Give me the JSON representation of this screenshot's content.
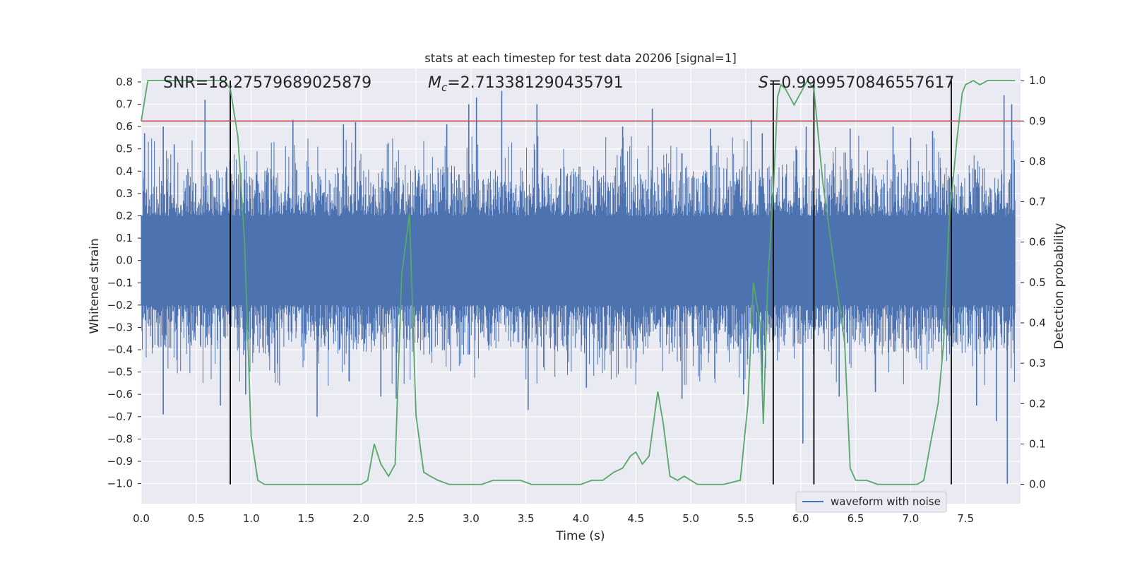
{
  "chart_data": {
    "type": "line",
    "title": "stats at each timestep for test data 20206 [signal=1]",
    "xlabel": "Time (s)",
    "ylabel": "Whitened strain",
    "y2label": "Detection probability",
    "xlim": [
      0.0,
      8.0
    ],
    "ylim": [
      -1.09,
      0.86
    ],
    "y2lim": [
      -0.048,
      1.03
    ],
    "x_ticks": [
      "0.0",
      "0.5",
      "1.0",
      "1.5",
      "2.0",
      "2.5",
      "3.0",
      "3.5",
      "4.0",
      "4.5",
      "5.0",
      "5.5",
      "6.0",
      "6.5",
      "7.0",
      "7.5"
    ],
    "y_ticks": [
      "0.8",
      "0.7",
      "0.6",
      "0.5",
      "0.4",
      "0.3",
      "0.2",
      "0.1",
      "0.0",
      "-0.1",
      "-0.2",
      "-0.3",
      "-0.4",
      "-0.5",
      "-0.6",
      "-0.7",
      "-0.8",
      "-0.9",
      "-1.0"
    ],
    "y2_ticks": [
      "1.0",
      "0.9",
      "0.8",
      "0.7",
      "0.6",
      "0.5",
      "0.4",
      "0.3",
      "0.2",
      "0.1",
      "0.0"
    ],
    "grid": true,
    "legend_position": "lower-right",
    "annotations": {
      "snr": "SNR=18.27579689025879",
      "mc_prefix": "M",
      "mc_sub": "c",
      "mc_value": "=2.713381290435791",
      "s_prefix": "S",
      "s_value": "=0.9999570846557617"
    },
    "threshold": {
      "value": 0.9,
      "axis": "y2",
      "color": "#c44e52"
    },
    "vertical_markers": [
      0.81,
      5.75,
      6.12,
      7.37
    ],
    "series": [
      {
        "name": "waveform with noise",
        "color": "#4c72b0",
        "envelope_note": "dense noise band",
        "x_range": [
          0.0,
          7.95
        ],
        "typical_range": [
          -0.45,
          0.45
        ],
        "peaks_upper": [
          {
            "x": 0.03,
            "y": 0.57
          },
          {
            "x": 0.2,
            "y": 0.6
          },
          {
            "x": 0.3,
            "y": 0.52
          },
          {
            "x": 0.58,
            "y": 0.72
          },
          {
            "x": 1.38,
            "y": 0.63
          },
          {
            "x": 1.84,
            "y": 0.61
          },
          {
            "x": 1.95,
            "y": 0.62
          },
          {
            "x": 2.78,
            "y": 0.61
          },
          {
            "x": 2.98,
            "y": 0.7
          },
          {
            "x": 3.05,
            "y": 0.73
          },
          {
            "x": 3.28,
            "y": 0.76
          },
          {
            "x": 3.6,
            "y": 0.7
          },
          {
            "x": 4.38,
            "y": 0.6
          },
          {
            "x": 4.65,
            "y": 0.68
          },
          {
            "x": 5.18,
            "y": 0.59
          },
          {
            "x": 5.55,
            "y": 0.63
          },
          {
            "x": 5.65,
            "y": 0.57
          },
          {
            "x": 6.05,
            "y": 0.6
          },
          {
            "x": 6.45,
            "y": 0.59
          },
          {
            "x": 6.84,
            "y": 0.6
          },
          {
            "x": 7.0,
            "y": 0.55
          },
          {
            "x": 7.2,
            "y": 0.58
          },
          {
            "x": 7.85,
            "y": 0.74
          },
          {
            "x": 7.92,
            "y": 0.7
          }
        ],
        "peaks_lower": [
          {
            "x": 0.2,
            "y": -0.69
          },
          {
            "x": 0.72,
            "y": -0.65
          },
          {
            "x": 0.95,
            "y": -0.6
          },
          {
            "x": 1.6,
            "y": -0.7
          },
          {
            "x": 2.18,
            "y": -0.61
          },
          {
            "x": 2.32,
            "y": -0.62
          },
          {
            "x": 3.52,
            "y": -0.67
          },
          {
            "x": 4.05,
            "y": -0.57
          },
          {
            "x": 4.92,
            "y": -0.62
          },
          {
            "x": 5.48,
            "y": -0.6
          },
          {
            "x": 5.65,
            "y": -0.6
          },
          {
            "x": 6.02,
            "y": -0.82
          },
          {
            "x": 6.35,
            "y": -0.61
          },
          {
            "x": 6.68,
            "y": -0.59
          },
          {
            "x": 7.6,
            "y": -0.65
          },
          {
            "x": 7.78,
            "y": -0.72
          },
          {
            "x": 7.88,
            "y": -1.0
          }
        ]
      },
      {
        "name": "",
        "axis": "y2",
        "color": "#55a868",
        "x": [
          0.0,
          0.06,
          0.12,
          0.2,
          0.3,
          0.4,
          0.5,
          0.6,
          0.7,
          0.75,
          0.81,
          0.88,
          0.94,
          1.0,
          1.06,
          1.12,
          1.2,
          1.3,
          1.5,
          1.7,
          1.8,
          2.0,
          2.06,
          2.12,
          2.18,
          2.25,
          2.31,
          2.37,
          2.44,
          2.5,
          2.57,
          2.63,
          2.7,
          2.8,
          3.0,
          3.1,
          3.2,
          3.25,
          3.3,
          3.45,
          3.55,
          3.75,
          4.0,
          4.1,
          4.2,
          4.3,
          4.38,
          4.45,
          4.5,
          4.56,
          4.62,
          4.7,
          4.75,
          4.81,
          4.88,
          4.94,
          5.0,
          5.06,
          5.12,
          5.3,
          5.45,
          5.52,
          5.57,
          5.63,
          5.66,
          5.7,
          5.75,
          5.79,
          5.82,
          5.86,
          5.94,
          6.0,
          6.06,
          6.12,
          6.2,
          6.3,
          6.4,
          6.45,
          6.5,
          6.6,
          6.7,
          6.8,
          6.9,
          7.0,
          7.06,
          7.12,
          7.18,
          7.25,
          7.3,
          7.35,
          7.42,
          7.47,
          7.5,
          7.57,
          7.63,
          7.7,
          7.8,
          7.95
        ],
        "y": [
          0.9,
          1.0,
          1.0,
          1.0,
          1.0,
          1.0,
          1.0,
          1.0,
          1.0,
          1.0,
          0.98,
          0.86,
          0.6,
          0.12,
          0.01,
          0.0,
          0.0,
          0.0,
          0.0,
          0.0,
          0.0,
          0.0,
          0.01,
          0.1,
          0.05,
          0.02,
          0.05,
          0.52,
          0.67,
          0.17,
          0.03,
          0.02,
          0.01,
          0.0,
          0.0,
          0.0,
          0.01,
          0.01,
          0.01,
          0.01,
          0.0,
          0.0,
          0.0,
          0.01,
          0.01,
          0.03,
          0.04,
          0.07,
          0.08,
          0.05,
          0.07,
          0.23,
          0.15,
          0.02,
          0.01,
          0.02,
          0.01,
          0.0,
          0.0,
          0.0,
          0.01,
          0.2,
          0.5,
          0.4,
          0.15,
          0.5,
          0.72,
          0.96,
          0.99,
          0.98,
          0.94,
          0.97,
          1.0,
          0.98,
          0.75,
          0.55,
          0.35,
          0.04,
          0.01,
          0.01,
          0.0,
          0.0,
          0.0,
          0.0,
          0.0,
          0.01,
          0.1,
          0.2,
          0.35,
          0.65,
          0.85,
          0.97,
          0.99,
          1.0,
          0.99,
          1.0,
          1.0,
          1.0
        ]
      }
    ]
  }
}
